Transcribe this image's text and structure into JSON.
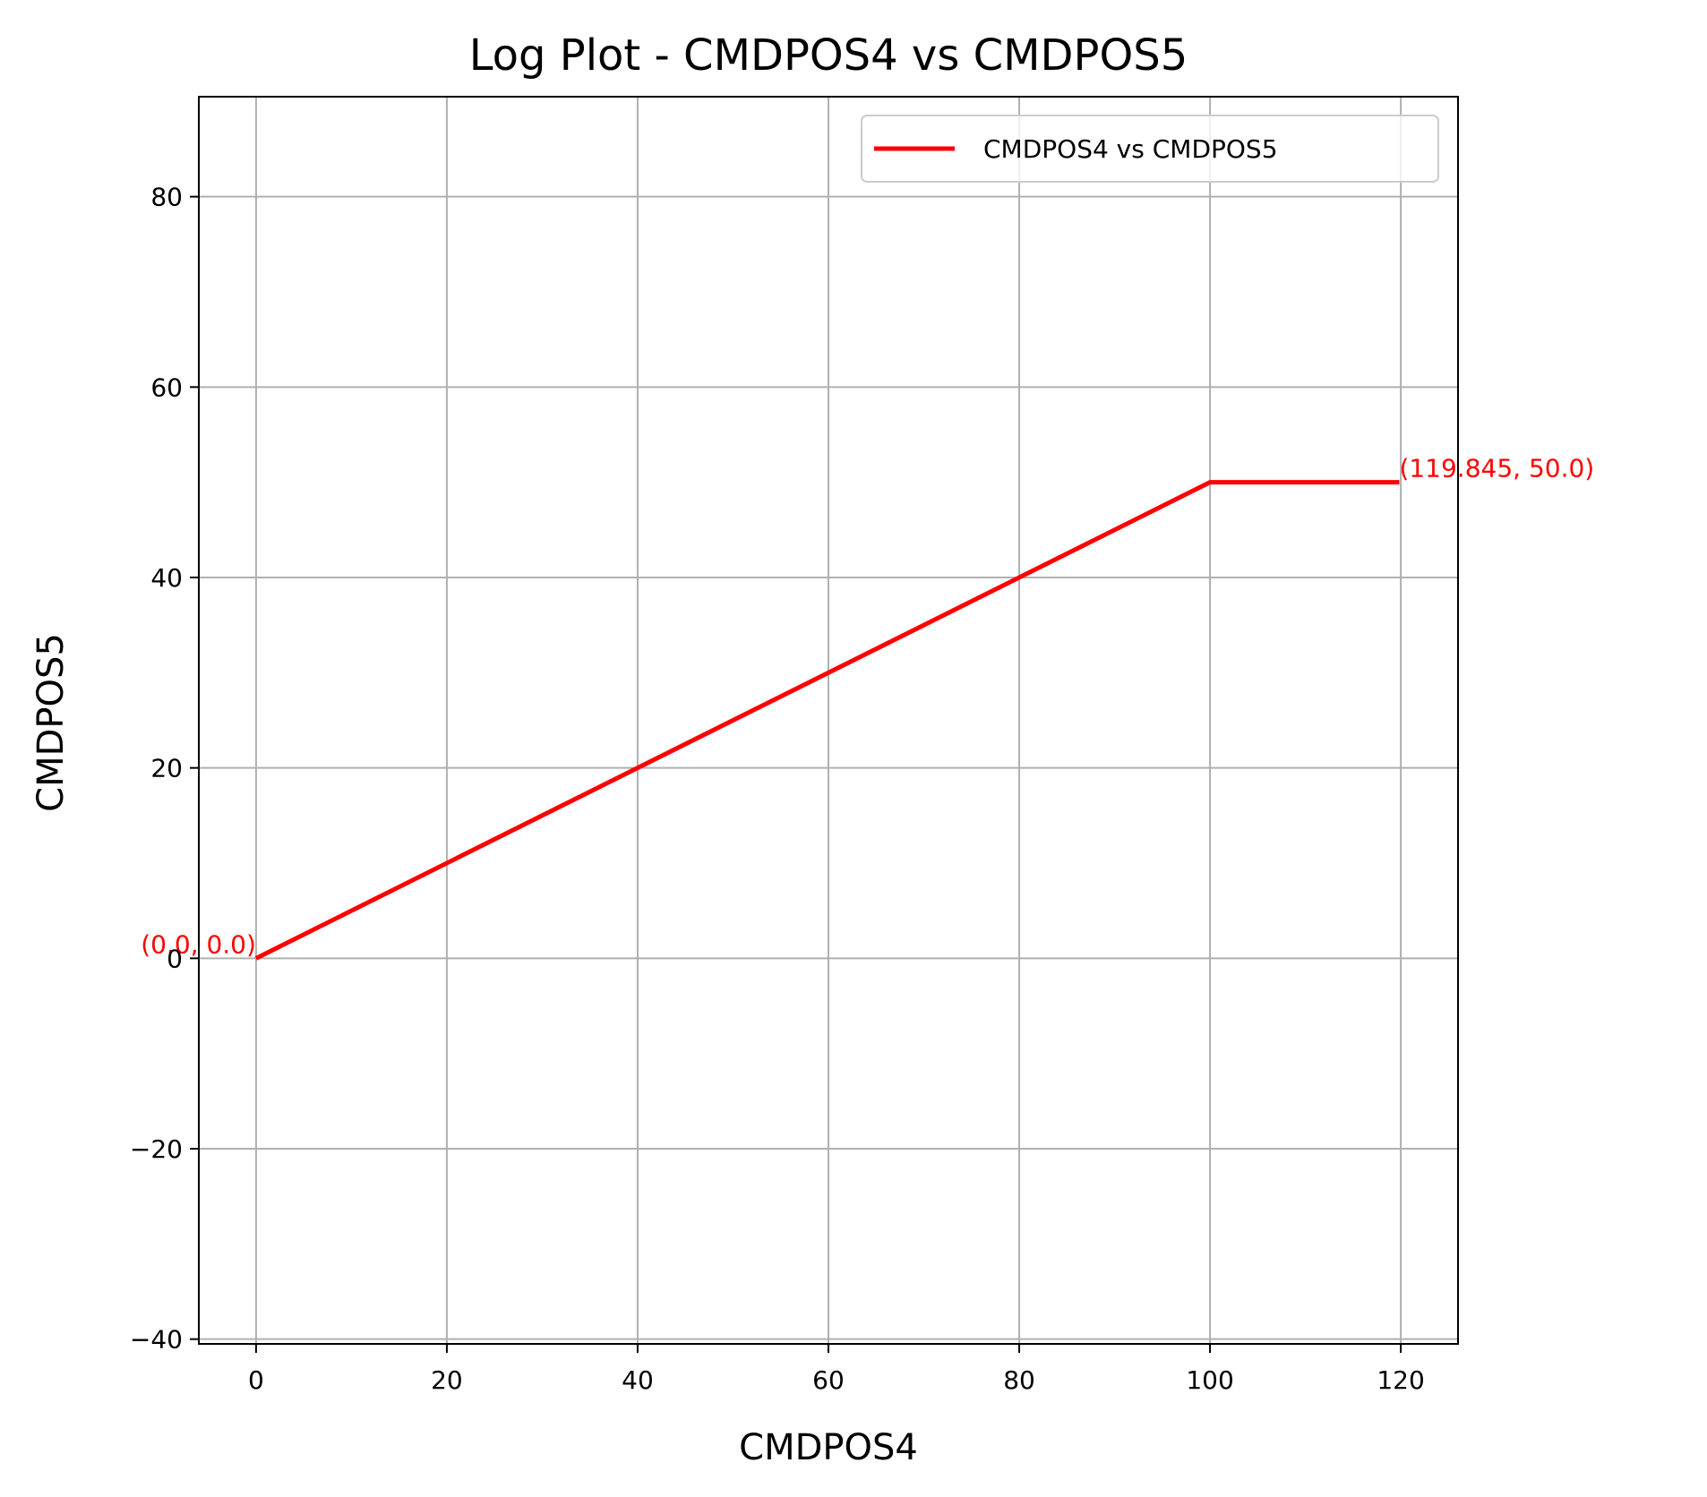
{
  "chart_data": {
    "type": "line",
    "title": "Log Plot - CMDPOS4 vs CMDPOS5",
    "xlabel": "CMDPOS4",
    "ylabel": "CMDPOS5",
    "xlim": [
      -6,
      126
    ],
    "ylim": [
      -40.5,
      90.5
    ],
    "x_ticks": [
      0,
      20,
      40,
      60,
      80,
      100,
      120
    ],
    "y_ticks": [
      -40,
      -20,
      0,
      20,
      40,
      60,
      80
    ],
    "x_tick_labels": [
      "0",
      "20",
      "40",
      "60",
      "80",
      "100",
      "120"
    ],
    "y_tick_labels": [
      "−40",
      "−20",
      "0",
      "20",
      "40",
      "60",
      "80"
    ],
    "grid": true,
    "legend_position": "top-right",
    "series": [
      {
        "name": "CMDPOS4 vs CMDPOS5",
        "color": "#ff0000",
        "x": [
          0,
          100,
          119.845
        ],
        "y": [
          0,
          50,
          50
        ]
      }
    ],
    "annotations": [
      {
        "text": "(0.0, 0.0)",
        "x": 0,
        "y": 0,
        "align": "end",
        "color": "#ff0000"
      },
      {
        "text": "(119.845, 50.0)",
        "x": 119.845,
        "y": 50,
        "align": "start",
        "color": "#ff0000"
      }
    ]
  }
}
